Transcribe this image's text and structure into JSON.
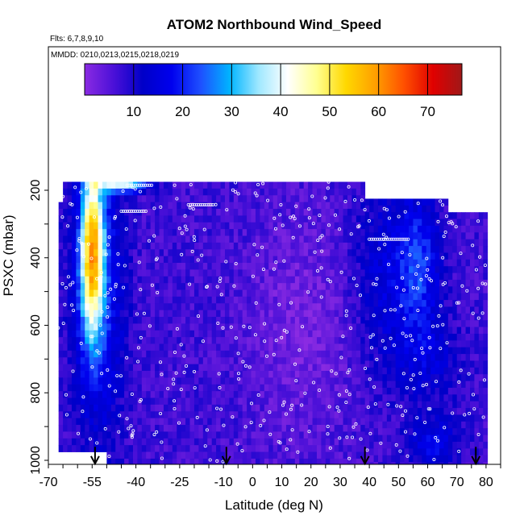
{
  "chart_data": {
    "type": "heatmap",
    "title": "ATOM2 Northbound Wind_Speed",
    "notes": [
      "Flts: 6,7,8,9,10",
      "MMDD: 0210,0213,0215,0218,0219"
    ],
    "xlabel": "Latitude (deg N)",
    "ylabel": "PSXC (mbar)",
    "xlim": [
      -70,
      85
    ],
    "ylim": [
      1010,
      0
    ],
    "y_reversed": true,
    "x_ticks": [
      -70,
      -55,
      -40,
      -25,
      -10,
      0,
      10,
      20,
      30,
      40,
      50,
      60,
      70,
      80
    ],
    "y_ticks": [
      200,
      400,
      600,
      800,
      1000
    ],
    "colorbar": {
      "min": 0,
      "max": 77,
      "ticks": [
        10,
        20,
        30,
        40,
        50,
        60,
        70
      ],
      "colors": [
        "#8a2be2",
        "#4b10d8",
        "#0000c8",
        "#0000ee",
        "#1e50ff",
        "#00b4ff",
        "#a0e8ff",
        "#ffffff",
        "#ffff90",
        "#ffd800",
        "#ffa000",
        "#ff5000",
        "#e00000",
        "#a01818"
      ]
    },
    "vertical_profiles_lat": [
      -54,
      -9,
      38.5,
      76.5
    ],
    "grid": false,
    "legend": "colorbar-top-inside"
  }
}
